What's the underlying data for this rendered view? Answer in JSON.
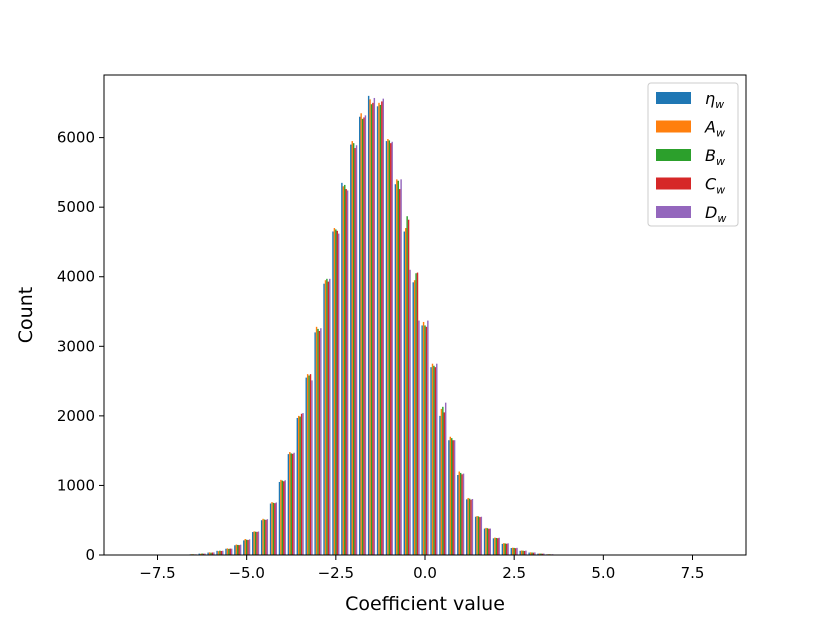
{
  "chart_data": {
    "type": "bar",
    "title": "",
    "xlabel": "Coefficient value",
    "ylabel": "Count",
    "xlim": [
      -9.0,
      9.0
    ],
    "ylim": [
      0,
      6900
    ],
    "xticks": [
      -7.5,
      -5.0,
      -2.5,
      0.0,
      2.5,
      5.0,
      7.5
    ],
    "xtick_labels": [
      "−7.5",
      "−5.0",
      "−2.5",
      "0.0",
      "2.5",
      "5.0",
      "7.5"
    ],
    "yticks": [
      0,
      1000,
      2000,
      3000,
      4000,
      5000,
      6000
    ],
    "ytick_labels": [
      "0",
      "1000",
      "2000",
      "3000",
      "4000",
      "5000",
      "6000"
    ],
    "grid": false,
    "legend_position": "top-right",
    "bin_centers": [
      -6.5,
      -6.25,
      -6.0,
      -5.75,
      -5.5,
      -5.25,
      -5.0,
      -4.75,
      -4.5,
      -4.25,
      -4.0,
      -3.75,
      -3.5,
      -3.25,
      -3.0,
      -2.75,
      -2.5,
      -2.25,
      -2.0,
      -1.75,
      -1.5,
      -1.25,
      -1.0,
      -0.75,
      -0.5,
      -0.25,
      0.0,
      0.25,
      0.5,
      0.75,
      1.0,
      1.25,
      1.5,
      1.75,
      2.0,
      2.25,
      2.5,
      2.75,
      3.0,
      3.25,
      3.5,
      3.75,
      4.0,
      4.25,
      4.5,
      4.75,
      5.0,
      5.25,
      5.5,
      5.75,
      6.0,
      6.25,
      6.5
    ],
    "series": [
      {
        "name": "η",
        "subscript": "w",
        "color": "#1f77b4",
        "values": [
          10,
          20,
          35,
          60,
          90,
          140,
          210,
          330,
          500,
          740,
          1050,
          1450,
          1970,
          2550,
          3200,
          3900,
          4650,
          5350,
          5900,
          6300,
          6600,
          6450,
          5950,
          5330,
          4650,
          3920,
          3300,
          2700,
          2000,
          1650,
          1150,
          800,
          550,
          380,
          240,
          160,
          100,
          60,
          35,
          20,
          10,
          5,
          3,
          2,
          1,
          1,
          0,
          0,
          0,
          0,
          0,
          0,
          0
        ]
      },
      {
        "name": "A",
        "subscript": "w",
        "color": "#ff7f0e",
        "values": [
          12,
          18,
          38,
          55,
          95,
          150,
          230,
          340,
          520,
          760,
          1080,
          1480,
          2000,
          2600,
          3280,
          3950,
          4700,
          5300,
          5950,
          6350,
          6550,
          6500,
          5980,
          5400,
          4700,
          3950,
          3350,
          2750,
          2100,
          1700,
          1200,
          820,
          560,
          390,
          250,
          170,
          105,
          65,
          38,
          22,
          12,
          6,
          3,
          2,
          1,
          1,
          0,
          0,
          0,
          0,
          0,
          0,
          0
        ]
      },
      {
        "name": "B",
        "subscript": "w",
        "color": "#2ca02c",
        "values": [
          11,
          22,
          33,
          62,
          88,
          145,
          220,
          335,
          510,
          750,
          1070,
          1460,
          1990,
          2580,
          3250,
          3970,
          4680,
          5320,
          5920,
          6270,
          6480,
          6470,
          5960,
          5380,
          4870,
          4050,
          3300,
          2720,
          2130,
          1680,
          1180,
          810,
          555,
          385,
          245,
          165,
          102,
          62,
          36,
          21,
          11,
          5,
          3,
          2,
          1,
          1,
          0,
          0,
          0,
          0,
          0,
          0,
          0
        ]
      },
      {
        "name": "C",
        "subscript": "w",
        "color": "#d62728",
        "values": [
          9,
          19,
          36,
          58,
          92,
          142,
          215,
          332,
          505,
          745,
          1060,
          1455,
          2030,
          2600,
          3220,
          3930,
          4660,
          5260,
          5850,
          6290,
          6500,
          6520,
          5920,
          5260,
          4820,
          4060,
          3280,
          2700,
          2050,
          1650,
          1160,
          795,
          545,
          378,
          242,
          162,
          98,
          58,
          34,
          19,
          9,
          5,
          3,
          2,
          1,
          1,
          0,
          0,
          0,
          0,
          0,
          0,
          0
        ]
      },
      {
        "name": "D",
        "subscript": "w",
        "color": "#9467bd",
        "values": [
          10,
          21,
          37,
          61,
          91,
          148,
          225,
          338,
          515,
          755,
          1075,
          1470,
          2040,
          2510,
          3260,
          3970,
          4620,
          5240,
          5890,
          6320,
          6570,
          6560,
          5940,
          5400,
          4100,
          3370,
          3370,
          2750,
          2190,
          1650,
          1170,
          805,
          550,
          380,
          248,
          168,
          103,
          63,
          37,
          21,
          11,
          6,
          3,
          2,
          1,
          1,
          0,
          0,
          0,
          0,
          0,
          0,
          0
        ]
      }
    ]
  }
}
